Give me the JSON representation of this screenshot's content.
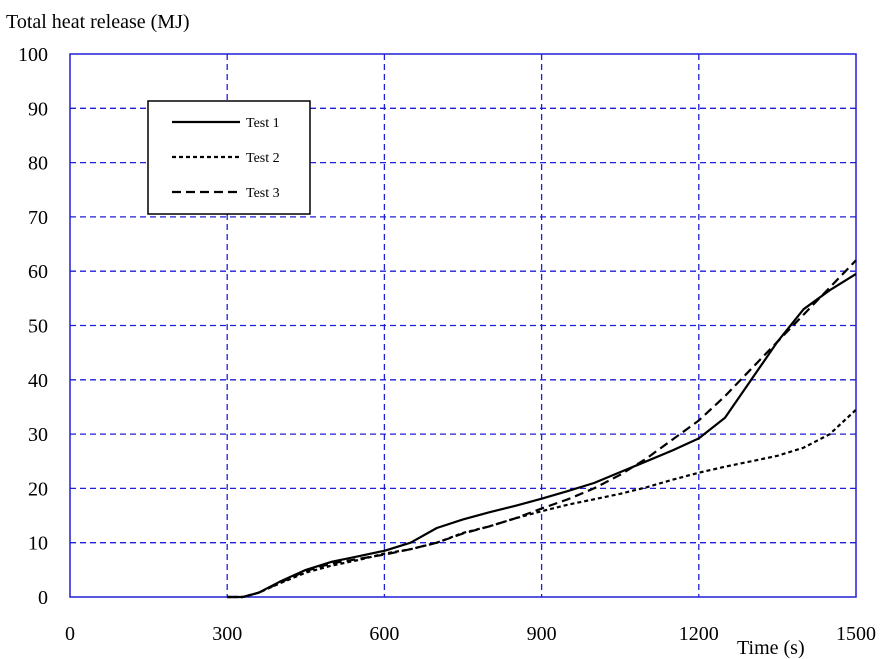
{
  "chart_data": {
    "type": "line",
    "title": "",
    "ylabel": "Total heat release (MJ)",
    "xlabel": "Time (s)",
    "xlim": [
      0,
      1500
    ],
    "ylim": [
      0,
      100
    ],
    "x_ticks": [
      0,
      300,
      600,
      900,
      1200,
      1500
    ],
    "y_ticks": [
      0,
      10,
      20,
      30,
      40,
      50,
      60,
      70,
      80,
      90,
      100
    ],
    "grid": true,
    "grid_color": "#1f1fd6",
    "legend_position": "top-left",
    "series": [
      {
        "name": "Test 1",
        "style": "solid",
        "color": "#000000",
        "x": [
          300,
          330,
          360,
          400,
          450,
          500,
          550,
          600,
          650,
          700,
          750,
          800,
          850,
          900,
          950,
          1000,
          1050,
          1100,
          1150,
          1200,
          1250,
          1300,
          1350,
          1400,
          1450,
          1500
        ],
        "y": [
          0,
          0,
          0.8,
          2.8,
          5,
          6.5,
          7.5,
          8.5,
          10,
          12.7,
          14.3,
          15.6,
          16.8,
          18.1,
          19.5,
          21,
          23,
          25,
          27,
          29.2,
          33,
          40,
          47,
          53,
          56.5,
          59.5
        ]
      },
      {
        "name": "Test 2",
        "style": "dotted",
        "color": "#000000",
        "x": [
          300,
          330,
          360,
          400,
          450,
          500,
          550,
          600,
          650,
          700,
          750,
          800,
          850,
          900,
          950,
          1000,
          1050,
          1100,
          1150,
          1200,
          1250,
          1300,
          1350,
          1400,
          1450,
          1500
        ],
        "y": [
          0,
          0,
          0.8,
          2.5,
          4.5,
          5.8,
          6.8,
          8,
          8.8,
          10,
          11.8,
          13,
          14.5,
          15.8,
          17,
          18,
          19,
          20.2,
          21.6,
          22.9,
          24,
          25,
          26,
          27.5,
          30,
          34.5
        ]
      },
      {
        "name": "Test 3",
        "style": "dashed",
        "color": "#000000",
        "x": [
          300,
          330,
          360,
          400,
          450,
          500,
          550,
          600,
          650,
          700,
          750,
          800,
          850,
          900,
          950,
          1000,
          1050,
          1100,
          1150,
          1200,
          1250,
          1300,
          1350,
          1400,
          1450,
          1500
        ],
        "y": [
          0,
          0,
          0.8,
          2.6,
          4.8,
          6.2,
          7,
          7.8,
          8.8,
          10,
          11.7,
          13,
          14.5,
          16.3,
          18,
          20,
          22.5,
          25.5,
          29,
          32.5,
          37,
          42,
          47,
          52,
          57,
          62
        ]
      }
    ]
  }
}
